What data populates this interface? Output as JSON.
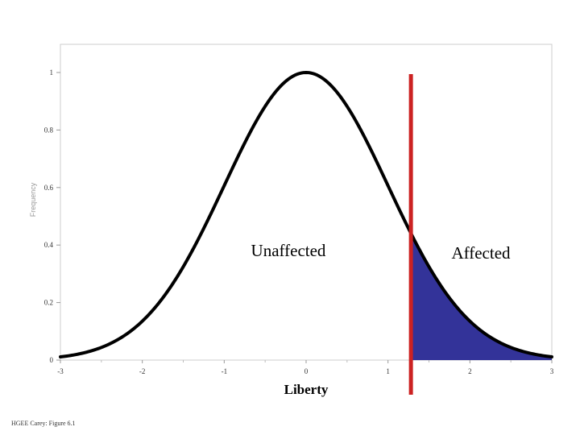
{
  "chart_data": {
    "type": "area",
    "x_range": [
      -3,
      3
    ],
    "ylim": [
      0,
      1
    ],
    "x_ticks": [
      "-3",
      "-2",
      "-1",
      "0",
      "1",
      "2",
      "3"
    ],
    "y_ticks": [
      "0",
      "0.2",
      "0.4",
      "0.6",
      "0.8",
      "1"
    ],
    "xlabel": "Liberty",
    "ylabel": "Frequency",
    "threshold": 1.28,
    "curve": {
      "shape": "normal",
      "mean": 0,
      "sd": 1,
      "peak": 1
    },
    "regions": [
      {
        "name": "Unaffected",
        "label": "Unaffected",
        "x_from": -3,
        "x_to": 1.28
      },
      {
        "name": "Affected",
        "label": "Affected",
        "x_from": 1.28,
        "x_to": 3,
        "fill": "#333399"
      }
    ],
    "colors": {
      "curve": "#000000",
      "threshold_line": "#cc2222",
      "shaded": "#333399",
      "frame": "#cccccc"
    },
    "grid": false,
    "legend": "none"
  },
  "footer": {
    "note": "HGEE Carey: Figure 6.1"
  }
}
